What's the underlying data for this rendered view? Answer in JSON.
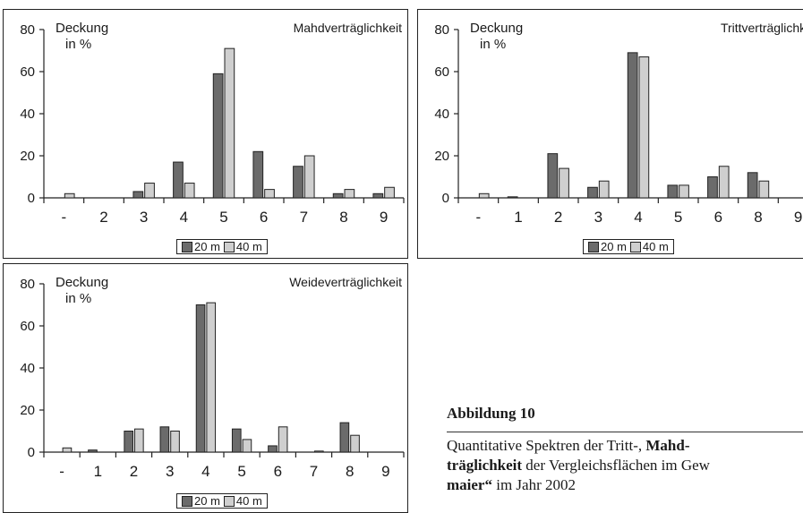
{
  "figure": {
    "heading": "Abbildung 10",
    "caption_lines": [
      [
        {
          "text": "Quantitative Spektren der Tritt-, ",
          "bold": false
        },
        {
          "text": "Mahd-",
          "bold": true
        }
      ],
      [
        {
          "text": "träglichkeit",
          "bold": true
        },
        {
          "text": " der Vergleichsflächen im Gew",
          "bold": false
        }
      ],
      [
        {
          "text": "maier“",
          "bold": true
        },
        {
          "text": " im Jahr 2002",
          "bold": false
        }
      ]
    ]
  },
  "colors": {
    "series_20m": "#6b6b6b",
    "series_40m": "#cfcfcf",
    "axis": "#222222"
  },
  "chart_data": [
    {
      "type": "bar",
      "title": "Mahdverträglichkeit",
      "ylabel": [
        "Deckung",
        "in %"
      ],
      "categories": [
        "-",
        "2",
        "3",
        "4",
        "5",
        "6",
        "7",
        "8",
        "9"
      ],
      "ylim": [
        0,
        80
      ],
      "yticks": [
        0,
        20,
        40,
        60,
        80
      ],
      "legend_position": "bottom-center",
      "series": [
        {
          "name": "20 m",
          "values": [
            0,
            0,
            3,
            17,
            59,
            22,
            15,
            2,
            2
          ]
        },
        {
          "name": "40 m",
          "values": [
            2,
            0,
            7,
            7,
            71,
            4,
            20,
            4,
            5
          ]
        }
      ]
    },
    {
      "type": "bar",
      "title": "Trittverträglichkei",
      "ylabel": [
        "Deckung",
        "in %"
      ],
      "categories": [
        "-",
        "1",
        "2",
        "3",
        "4",
        "5",
        "6",
        "8",
        "9"
      ],
      "ylim": [
        0,
        80
      ],
      "yticks": [
        0,
        20,
        40,
        60,
        80
      ],
      "legend_position": "bottom-center",
      "series": [
        {
          "name": "20 m",
          "values": [
            0,
            0.5,
            21,
            5,
            69,
            6,
            10,
            12,
            0
          ]
        },
        {
          "name": "40 m",
          "values": [
            2,
            0,
            14,
            8,
            67,
            6,
            15,
            8,
            0
          ]
        }
      ]
    },
    {
      "type": "bar",
      "title": "Weideverträglichkeit",
      "ylabel": [
        "Deckung",
        "in %"
      ],
      "categories": [
        "-",
        "1",
        "2",
        "3",
        "4",
        "5",
        "6",
        "7",
        "8",
        "9"
      ],
      "ylim": [
        0,
        80
      ],
      "yticks": [
        0,
        20,
        40,
        60,
        80
      ],
      "legend_position": "bottom-center",
      "series": [
        {
          "name": "20 m",
          "values": [
            0,
            1,
            10,
            12,
            70,
            11,
            3,
            0,
            14,
            0
          ]
        },
        {
          "name": "40 m",
          "values": [
            2,
            0,
            11,
            10,
            71,
            6,
            12,
            0.5,
            8,
            0
          ]
        }
      ]
    }
  ]
}
